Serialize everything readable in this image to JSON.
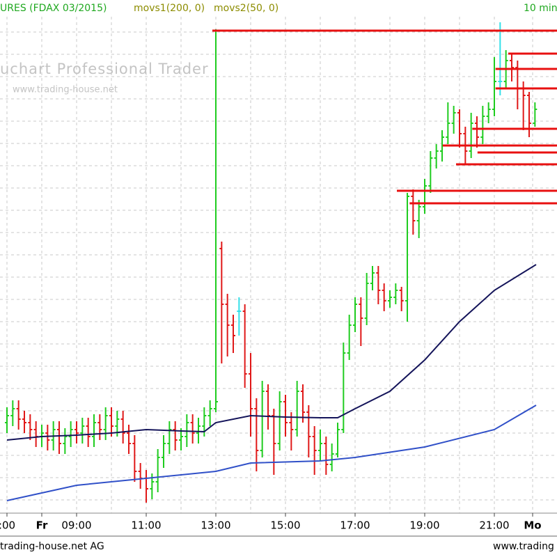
{
  "chart_data": {
    "type": "ohlc",
    "title": "URES (FDAX 03/2015)",
    "timeframe": "10 min",
    "watermark": "uchart Professional Trader",
    "watermark_url": "www.trading-house.net",
    "footer_left": "trading-house.net AG",
    "footer_right": "www.trading",
    "up_color": "#1fcc1f",
    "down_color": "#e01818",
    "flat_color": "#33e0e8",
    "level_color": "#e81010",
    "xlim": [
      408,
      1368
    ],
    "ylim": [
      0,
      713
    ],
    "xticks": [
      {
        "value": 420,
        "label": ":00"
      },
      {
        "value": 480,
        "label": "Fr"
      },
      {
        "value": 540,
        "label": "09:00"
      },
      {
        "value": 660,
        "label": "11:00"
      },
      {
        "value": 780,
        "label": "13:00"
      },
      {
        "value": 900,
        "label": "15:00"
      },
      {
        "value": 1020,
        "label": "17:00"
      },
      {
        "value": 1140,
        "label": "19:00"
      },
      {
        "value": 1260,
        "label": "21:00"
      },
      {
        "value": 1326,
        "label": "Mo"
      }
    ],
    "xgrid": [
      600,
      720,
      840,
      960,
      1080,
      1200
    ],
    "ygrid": [
      19,
      51,
      83,
      115,
      147,
      179,
      211,
      243,
      275,
      307,
      339,
      371,
      403,
      435,
      467,
      499,
      531,
      563,
      595,
      627,
      659,
      691
    ],
    "x": [
      420,
      430,
      440,
      450,
      460,
      470,
      480,
      490,
      500,
      510,
      520,
      530,
      540,
      550,
      560,
      570,
      580,
      590,
      600,
      610,
      620,
      630,
      640,
      650,
      660,
      670,
      680,
      690,
      700,
      710,
      720,
      730,
      740,
      750,
      760,
      770,
      780,
      790,
      800,
      810,
      820,
      830,
      840,
      850,
      860,
      870,
      880,
      890,
      900,
      910,
      920,
      930,
      940,
      950,
      960,
      970,
      980,
      990,
      1000,
      1010,
      1020,
      1030,
      1040,
      1050,
      1060,
      1070,
      1080,
      1090,
      1100,
      1110,
      1120,
      1130,
      1140,
      1150,
      1160,
      1170,
      1180,
      1190,
      1200,
      1210,
      1220,
      1230,
      1240,
      1250,
      1260,
      1270,
      1280,
      1290,
      1300,
      1310,
      1320,
      1330
    ],
    "open": [
      130,
      140,
      150,
      135,
      130,
      120,
      110,
      115,
      105,
      120,
      100,
      110,
      120,
      115,
      125,
      110,
      130,
      120,
      140,
      125,
      135,
      115,
      100,
      60,
      50,
      35,
      45,
      80,
      100,
      120,
      105,
      110,
      130,
      115,
      125,
      140,
      150,
      380,
      300,
      270,
      290,
      290,
      200,
      150,
      90,
      175,
      140,
      100,
      160,
      130,
      120,
      175,
      145,
      110,
      90,
      100,
      70,
      85,
      120,
      230,
      270,
      300,
      280,
      330,
      345,
      320,
      305,
      310,
      320,
      305,
      455,
      420,
      440,
      470,
      510,
      520,
      540,
      560,
      575,
      545,
      520,
      560,
      540,
      570,
      580,
      620,
      620,
      650,
      640,
      610,
      600,
      560
    ],
    "high": [
      152,
      162,
      162,
      147,
      142,
      132,
      127,
      127,
      132,
      132,
      122,
      132,
      132,
      137,
      137,
      142,
      142,
      152,
      152,
      147,
      147,
      127,
      112,
      72,
      62,
      57,
      92,
      112,
      132,
      132,
      122,
      142,
      142,
      137,
      152,
      162,
      695,
      390,
      315,
      285,
      310,
      300,
      230,
      165,
      190,
      185,
      150,
      175,
      170,
      145,
      190,
      185,
      155,
      125,
      120,
      110,
      100,
      130,
      245,
      285,
      310,
      310,
      345,
      355,
      355,
      330,
      320,
      330,
      325,
      460,
      465,
      450,
      480,
      520,
      530,
      550,
      590,
      585,
      580,
      555,
      575,
      570,
      585,
      590,
      655,
      705,
      665,
      660,
      650,
      620,
      605,
      590
    ],
    "low": [
      115,
      125,
      120,
      115,
      105,
      95,
      95,
      90,
      90,
      85,
      85,
      95,
      100,
      100,
      95,
      95,
      105,
      105,
      110,
      110,
      100,
      85,
      45,
      35,
      15,
      20,
      30,
      65,
      85,
      90,
      90,
      95,
      100,
      100,
      110,
      125,
      145,
      215,
      225,
      230,
      255,
      180,
      110,
      60,
      80,
      120,
      55,
      90,
      110,
      90,
      110,
      130,
      80,
      55,
      75,
      55,
      60,
      80,
      115,
      220,
      260,
      240,
      270,
      320,
      300,
      290,
      295,
      300,
      290,
      275,
      400,
      395,
      430,
      460,
      495,
      505,
      530,
      545,
      525,
      500,
      510,
      525,
      530,
      560,
      570,
      600,
      610,
      620,
      580,
      550,
      540,
      555
    ],
    "close": [
      140,
      150,
      135,
      130,
      120,
      110,
      115,
      105,
      120,
      100,
      110,
      120,
      115,
      125,
      110,
      130,
      120,
      140,
      125,
      135,
      115,
      100,
      60,
      50,
      35,
      45,
      80,
      100,
      120,
      105,
      110,
      130,
      115,
      125,
      140,
      150,
      160,
      300,
      270,
      255,
      290,
      200,
      150,
      90,
      175,
      140,
      100,
      160,
      130,
      120,
      175,
      145,
      110,
      90,
      100,
      70,
      85,
      120,
      230,
      270,
      300,
      280,
      330,
      345,
      320,
      305,
      310,
      320,
      305,
      455,
      420,
      440,
      470,
      510,
      520,
      540,
      560,
      575,
      545,
      520,
      560,
      540,
      570,
      580,
      620,
      620,
      650,
      640,
      610,
      600,
      560,
      580
    ],
    "series": [
      {
        "name": "movs1(200, 0)",
        "color": "#3050c8",
        "label_color": "#8c8c00",
        "x": [
          420,
          540,
          660,
          780,
          840,
          960,
          1020,
          1140,
          1260,
          1332
        ],
        "values": [
          18,
          40,
          50,
          60,
          72,
          75,
          80,
          95,
          120,
          155
        ]
      },
      {
        "name": "movs2(50, 0)",
        "color": "#14145a",
        "label_color": "#8c8c00",
        "x": [
          420,
          480,
          540,
          600,
          660,
          720,
          760,
          780,
          840,
          900,
          960,
          990,
          1020,
          1080,
          1140,
          1200,
          1260,
          1332
        ],
        "values": [
          105,
          110,
          112,
          115,
          120,
          118,
          117,
          130,
          140,
          138,
          137,
          137,
          150,
          175,
          220,
          275,
          320,
          357
        ]
      }
    ],
    "levels": [
      693,
      660,
      638,
      610,
      552,
      528,
      518,
      501,
      463,
      445
    ],
    "level_start": [
      774,
      1284,
      1262,
      1262,
      1222,
      1171,
      1231,
      1194,
      1092,
      1114
    ]
  }
}
